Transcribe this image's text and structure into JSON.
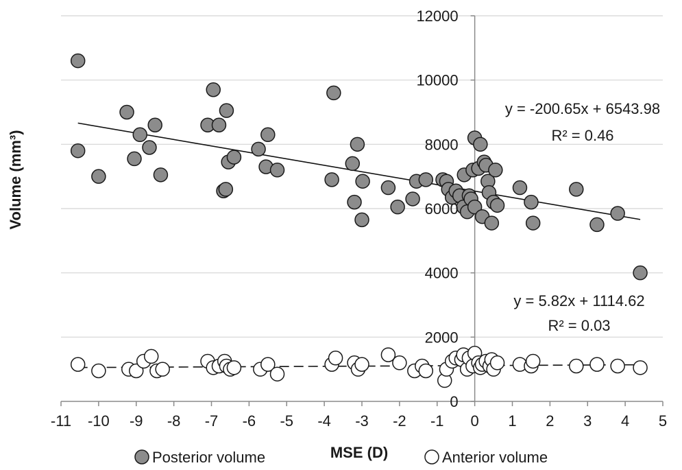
{
  "chart_data": {
    "type": "scatter",
    "title": "",
    "xlabel": "MSE (D)",
    "ylabel": "Volume (mm³)",
    "xlim": [
      -11,
      5
    ],
    "ylim": [
      0,
      12000
    ],
    "x_ticks": [
      -11,
      -10,
      -9,
      -8,
      -7,
      -6,
      -5,
      -4,
      -3,
      -2,
      -1,
      0,
      1,
      2,
      3,
      4,
      5
    ],
    "y_ticks": [
      0,
      2000,
      4000,
      6000,
      8000,
      10000,
      12000
    ],
    "grid": "horizontal",
    "legend_position": "bottom",
    "series": [
      {
        "name": "Posterior volume",
        "marker": "filled-circle",
        "color": "#8c8c8c",
        "trendline": {
          "style": "solid",
          "slope": -200.65,
          "intercept": 6543.98,
          "x_range": [
            -10.55,
            4.4
          ]
        },
        "equation": "y = -200.65x + 6543.98",
        "r2": "R² = 0.46",
        "points": [
          [
            -10.55,
            10600
          ],
          [
            -10.55,
            7800
          ],
          [
            -10,
            7000
          ],
          [
            -9.25,
            9000
          ],
          [
            -9.05,
            7550
          ],
          [
            -8.9,
            8300
          ],
          [
            -8.65,
            7900
          ],
          [
            -8.5,
            8600
          ],
          [
            -8.35,
            7050
          ],
          [
            -7.1,
            8600
          ],
          [
            -6.95,
            9700
          ],
          [
            -6.8,
            8600
          ],
          [
            -6.68,
            6550
          ],
          [
            -6.62,
            6600
          ],
          [
            -6.6,
            9050
          ],
          [
            -6.55,
            7450
          ],
          [
            -6.4,
            7600
          ],
          [
            -5.75,
            7850
          ],
          [
            -5.55,
            7300
          ],
          [
            -5.5,
            8300
          ],
          [
            -5.25,
            7200
          ],
          [
            -3.8,
            6900
          ],
          [
            -3.75,
            9600
          ],
          [
            -3.25,
            7400
          ],
          [
            -3.2,
            6200
          ],
          [
            -3.12,
            8000
          ],
          [
            -3.0,
            5650
          ],
          [
            -2.98,
            6850
          ],
          [
            -2.3,
            6650
          ],
          [
            -2.05,
            6050
          ],
          [
            -1.65,
            6300
          ],
          [
            -1.55,
            6850
          ],
          [
            -1.3,
            6900
          ],
          [
            -0.85,
            6900
          ],
          [
            -0.75,
            6850
          ],
          [
            -0.7,
            6600
          ],
          [
            -0.6,
            6350
          ],
          [
            -0.5,
            6550
          ],
          [
            -0.4,
            6400
          ],
          [
            -0.3,
            6050
          ],
          [
            -0.28,
            7050
          ],
          [
            -0.2,
            5900
          ],
          [
            -0.15,
            6400
          ],
          [
            -0.1,
            6300
          ],
          [
            -0.05,
            7200
          ],
          [
            0.0,
            6050
          ],
          [
            0.0,
            8200
          ],
          [
            0.1,
            7250
          ],
          [
            0.15,
            8000
          ],
          [
            0.2,
            5750
          ],
          [
            0.25,
            7450
          ],
          [
            0.3,
            7350
          ],
          [
            0.35,
            6850
          ],
          [
            0.38,
            6500
          ],
          [
            0.45,
            5550
          ],
          [
            0.5,
            6200
          ],
          [
            0.55,
            7200
          ],
          [
            0.6,
            6100
          ],
          [
            1.2,
            6650
          ],
          [
            1.5,
            6200
          ],
          [
            1.55,
            5550
          ],
          [
            2.7,
            6600
          ],
          [
            3.25,
            5500
          ],
          [
            3.8,
            5850
          ],
          [
            4.4,
            4000
          ]
        ]
      },
      {
        "name": "Anterior volume",
        "marker": "hollow-circle",
        "color": "#ffffff",
        "trendline": {
          "style": "dashed",
          "slope": 5.82,
          "intercept": 1114.62,
          "x_range": [
            -10.55,
            4.4
          ]
        },
        "equation": "y = 5.82x + 1114.62",
        "r2": "R² = 0.03",
        "points": [
          [
            -10.55,
            1150
          ],
          [
            -10.0,
            950
          ],
          [
            -9.2,
            1000
          ],
          [
            -9.0,
            950
          ],
          [
            -8.8,
            1250
          ],
          [
            -8.6,
            1400
          ],
          [
            -8.45,
            950
          ],
          [
            -8.3,
            1000
          ],
          [
            -7.1,
            1250
          ],
          [
            -6.95,
            1050
          ],
          [
            -6.8,
            1100
          ],
          [
            -6.65,
            1250
          ],
          [
            -6.6,
            1100
          ],
          [
            -6.5,
            1000
          ],
          [
            -6.4,
            1050
          ],
          [
            -5.7,
            1000
          ],
          [
            -5.5,
            1150
          ],
          [
            -5.25,
            850
          ],
          [
            -3.8,
            1150
          ],
          [
            -3.7,
            1350
          ],
          [
            -3.2,
            1200
          ],
          [
            -3.1,
            1000
          ],
          [
            -3.0,
            1150
          ],
          [
            -2.3,
            1450
          ],
          [
            -2.0,
            1200
          ],
          [
            -1.6,
            950
          ],
          [
            -1.4,
            1100
          ],
          [
            -1.3,
            950
          ],
          [
            -0.8,
            650
          ],
          [
            -0.75,
            1000
          ],
          [
            -0.6,
            1250
          ],
          [
            -0.5,
            1350
          ],
          [
            -0.35,
            1300
          ],
          [
            -0.3,
            1450
          ],
          [
            -0.2,
            1000
          ],
          [
            -0.15,
            1350
          ],
          [
            -0.05,
            1100
          ],
          [
            0.0,
            1500
          ],
          [
            0.1,
            1200
          ],
          [
            0.15,
            1050
          ],
          [
            0.2,
            1150
          ],
          [
            0.3,
            1250
          ],
          [
            0.4,
            1100
          ],
          [
            0.45,
            1300
          ],
          [
            0.5,
            1000
          ],
          [
            0.6,
            1200
          ],
          [
            1.2,
            1150
          ],
          [
            1.5,
            1100
          ],
          [
            1.55,
            1250
          ],
          [
            2.7,
            1100
          ],
          [
            3.25,
            1150
          ],
          [
            3.8,
            1100
          ],
          [
            4.4,
            1050
          ]
        ]
      }
    ]
  }
}
